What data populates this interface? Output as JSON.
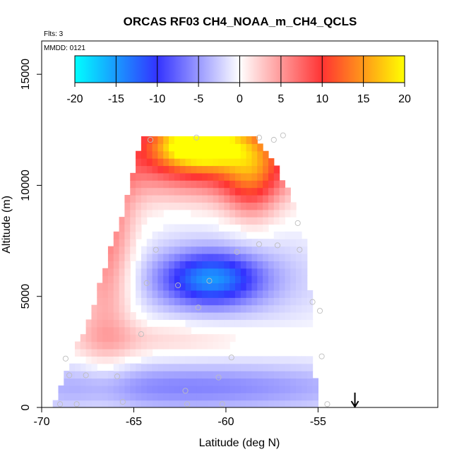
{
  "chart_data": {
    "type": "heatmap",
    "title": "ORCAS RF03 CH4_NOAA_m_CH4_QCLS",
    "flights_label": "Flts: 3",
    "date_label": "MMDD: 0121",
    "xlabel": "Latitude (deg N)",
    "ylabel": "Altitude (m)",
    "xlim": [
      -70,
      -48.5
    ],
    "ylim": [
      0,
      16500
    ],
    "x_ticks": [
      -70,
      -65,
      -60,
      -55
    ],
    "x_tick_labels": [
      "-70",
      "-65",
      "-60",
      "-55"
    ],
    "y_ticks": [
      0,
      5000,
      10000,
      15000
    ],
    "y_tick_labels": [
      "0",
      "5000",
      "10000",
      "15000"
    ],
    "colorbar": {
      "range": [
        -20,
        20
      ],
      "ticks": [
        -20,
        -15,
        -10,
        -5,
        0,
        5,
        10,
        15,
        20
      ],
      "tick_labels": [
        "-20",
        "-15",
        "-10",
        "-5",
        "0",
        "5",
        "10",
        "15",
        "20"
      ],
      "colors": [
        "#00ffff",
        "#3333ff",
        "#ffffff",
        "#ff3333",
        "#ffff00"
      ]
    },
    "arrow_marker_lat": -53,
    "envelope": [
      [
        -69.3,
        0
      ],
      [
        -69.1,
        800
      ],
      [
        -68.6,
        1900
      ],
      [
        -67.3,
        4200
      ],
      [
        -66.3,
        7000
      ],
      [
        -65.5,
        9000
      ],
      [
        -64.6,
        12200
      ],
      [
        -58.5,
        12200
      ],
      [
        -57.2,
        10800
      ],
      [
        -56.2,
        9000
      ],
      [
        -55.6,
        7000
      ],
      [
        -55.2,
        2500
      ],
      [
        -55.1,
        0
      ]
    ],
    "features": [
      {
        "name": "upper-red-fan",
        "lat": -61.5,
        "alt": 11900,
        "value": 17,
        "slat": 1.6,
        "salt": 700
      },
      {
        "name": "upper-red-band",
        "lat": -61.0,
        "alt": 11300,
        "value": 11,
        "slat": 3.8,
        "salt": 1200
      },
      {
        "name": "red-streak",
        "lat": -58.6,
        "alt": 10400,
        "value": 8,
        "slat": 1.1,
        "salt": 1400
      },
      {
        "name": "left-red-edge",
        "lat": -66.5,
        "alt": 7500,
        "value": 7,
        "slat": 1.1,
        "salt": 3600
      },
      {
        "name": "mid-blue-core",
        "lat": -60.8,
        "alt": 5800,
        "value": -11,
        "slat": 1.8,
        "salt": 800
      },
      {
        "name": "mid-blue-halo",
        "lat": -60.5,
        "alt": 5800,
        "value": -4,
        "slat": 4.2,
        "salt": 1500
      },
      {
        "name": "pale-red-layer",
        "lat": -63.5,
        "alt": 3100,
        "value": 2.5,
        "slat": 4.0,
        "salt": 600
      },
      {
        "name": "low-blue-layer",
        "lat": -62.0,
        "alt": 900,
        "value": -6,
        "slat": 7.5,
        "salt": 800
      }
    ],
    "sample_points": [
      {
        "lat": -69.0,
        "alt": 150
      },
      {
        "lat": -68.1,
        "alt": 150
      },
      {
        "lat": -67.6,
        "alt": 1450
      },
      {
        "lat": -68.5,
        "alt": 1450
      },
      {
        "lat": -68.7,
        "alt": 2200
      },
      {
        "lat": -65.9,
        "alt": 1400
      },
      {
        "lat": -64.6,
        "alt": 3300
      },
      {
        "lat": -64.1,
        "alt": 12050
      },
      {
        "lat": -61.6,
        "alt": 12150
      },
      {
        "lat": -58.2,
        "alt": 12150
      },
      {
        "lat": -57.4,
        "alt": 12050
      },
      {
        "lat": -56.9,
        "alt": 12250
      },
      {
        "lat": -56.1,
        "alt": 8300
      },
      {
        "lat": -58.2,
        "alt": 7350
      },
      {
        "lat": -57.2,
        "alt": 7300
      },
      {
        "lat": -56.0,
        "alt": 7100
      },
      {
        "lat": -63.8,
        "alt": 7100
      },
      {
        "lat": -59.4,
        "alt": 7000
      },
      {
        "lat": -64.3,
        "alt": 5600
      },
      {
        "lat": -62.6,
        "alt": 5500
      },
      {
        "lat": -60.9,
        "alt": 5700
      },
      {
        "lat": -61.5,
        "alt": 4500
      },
      {
        "lat": -55.3,
        "alt": 4750
      },
      {
        "lat": -54.9,
        "alt": 4350
      },
      {
        "lat": -59.7,
        "alt": 2250
      },
      {
        "lat": -60.4,
        "alt": 1350
      },
      {
        "lat": -62.2,
        "alt": 750
      },
      {
        "lat": -62.1,
        "alt": 150
      },
      {
        "lat": -65.6,
        "alt": 250
      },
      {
        "lat": -60.2,
        "alt": 150
      },
      {
        "lat": -54.8,
        "alt": 2300
      },
      {
        "lat": -54.5,
        "alt": 150
      }
    ]
  }
}
